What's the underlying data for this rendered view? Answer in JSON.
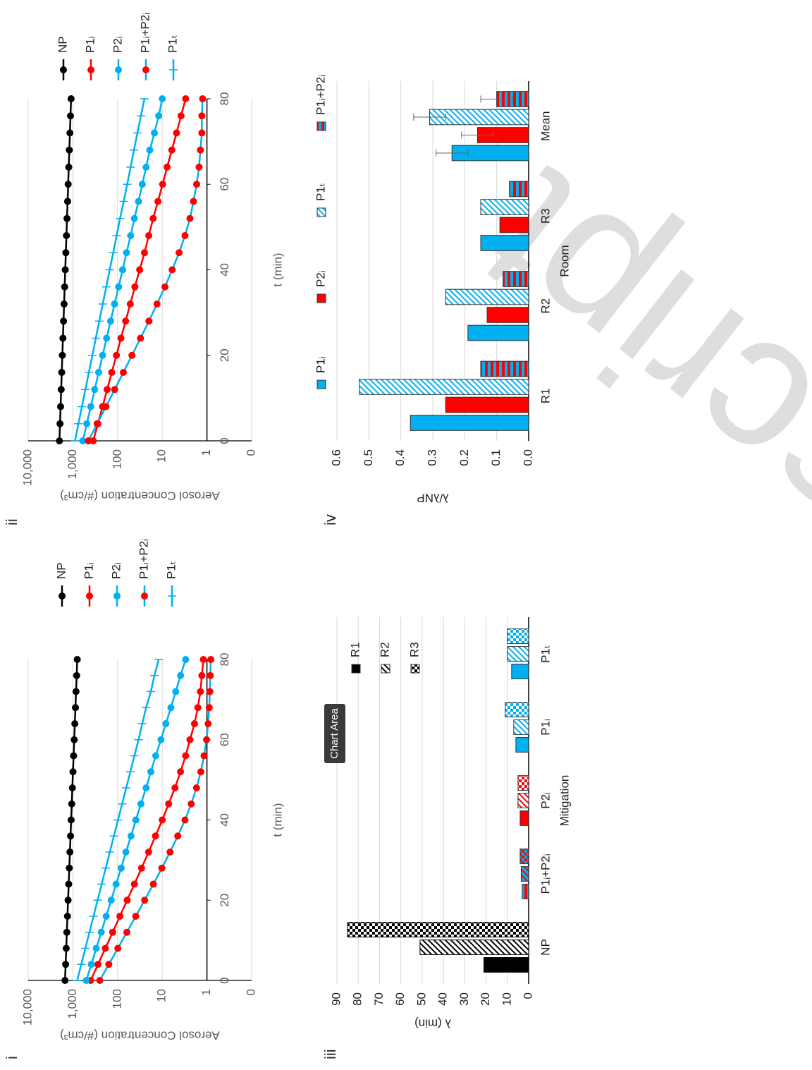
{
  "watermark": "script",
  "chart_data": [
    {
      "type": "line",
      "panel": "i",
      "xlabel": "t (min)",
      "ylabel": "Aerosol Concentration (#/cm³)",
      "yscale": "log",
      "xaxis_at": 1,
      "xlim": [
        0,
        80
      ],
      "xticks": [
        0,
        20,
        40,
        60,
        80
      ],
      "ylim": [
        0.1,
        10000
      ],
      "yticks": [
        {
          "value": 10000,
          "label": "10,000"
        },
        {
          "value": 1000,
          "label": "1,000"
        },
        100,
        10,
        1,
        {
          "value": 0.1,
          "label": "0"
        }
      ],
      "x": [
        0,
        4,
        8,
        12,
        16,
        20,
        24,
        28,
        32,
        36,
        40,
        44,
        48,
        52,
        56,
        60,
        64,
        68,
        72,
        76,
        80
      ],
      "series": [
        {
          "name": "NP",
          "color": "#000000",
          "marker": "circle",
          "values": [
            1500,
            1453,
            1408,
            1365,
            1322,
            1281,
            1241,
            1203,
            1165,
            1129,
            1094,
            1060,
            1027,
            995,
            964,
            934,
            905,
            877,
            850,
            823,
            798
          ]
        },
        {
          "name": "P1ᵢ",
          "color": "#ff0000",
          "marker": "circle",
          "values": [
            400,
            274,
            188,
            129,
            88.6,
            61,
            42,
            29.1,
            20.2,
            14.2,
            10,
            7.2,
            5.2,
            3.9,
            3,
            2.4,
            1.9,
            1.6,
            1.4,
            1.3,
            1.2
          ]
        },
        {
          "name": "P2ᵢ",
          "color": "#00b0f0",
          "marker": "circle",
          "values": [
            500,
            387,
            300,
            232,
            180,
            139,
            108,
            83,
            65,
            50,
            39,
            30,
            23,
            18,
            14,
            10.7,
            8.3,
            6.4,
            5,
            3.9,
            3
          ]
        },
        {
          "name": "P1ᵢ+P2ᵢ",
          "color": "#00b0f0",
          "marker_color": "#ff0000",
          "marker": "circle",
          "values": [
            250,
            157,
            98.6,
            62,
            39.1,
            24.8,
            15.8,
            10.2,
            6.7,
            4.5,
            3.1,
            2.25,
            1.71,
            1.37,
            1.16,
            1.02,
            0.94,
            0.89,
            0.86,
            0.84,
            0.82
          ]
        },
        {
          "name": "P1ₜ",
          "color": "#00b0f0",
          "marker": "plus",
          "values": [
            800,
            649,
            526,
            426,
            345,
            280,
            227,
            184,
            149,
            121,
            98,
            79,
            64,
            52,
            42,
            34,
            28,
            23,
            18,
            15,
            12
          ]
        }
      ]
    },
    {
      "type": "line",
      "panel": "ii",
      "xlabel": "t (min)",
      "ylabel": "Aerosol Concentration (#/cm³)",
      "yscale": "log",
      "xaxis_at": 1,
      "xlim": [
        0,
        80
      ],
      "xticks": [
        0,
        20,
        40,
        60,
        80
      ],
      "ylim": [
        0.1,
        10000
      ],
      "yticks": [
        {
          "value": 10000,
          "label": "10,000"
        },
        {
          "value": 1000,
          "label": "1,000"
        },
        100,
        10,
        1,
        {
          "value": 0.1,
          "label": "0"
        }
      ],
      "x": [
        0,
        4,
        8,
        12,
        16,
        20,
        24,
        28,
        32,
        36,
        40,
        44,
        48,
        52,
        56,
        60,
        64,
        68,
        72,
        76,
        80
      ],
      "series": [
        {
          "name": "NP",
          "color": "#000000",
          "marker": "circle",
          "values": [
            2000,
            1941,
            1884,
            1828,
            1774,
            1721,
            1671,
            1621,
            1573,
            1527,
            1482,
            1438,
            1395,
            1354,
            1314,
            1275,
            1237,
            1201,
            1165,
            1131,
            1097
          ]
        },
        {
          "name": "P1ᵢ",
          "color": "#ff0000",
          "marker": "circle",
          "values": [
            350,
            276,
            217,
            171,
            135,
            106,
            84,
            66,
            52,
            41,
            32,
            25,
            20,
            16,
            12.5,
            9.8,
            7.8,
            6.1,
            4.8,
            3.8,
            3
          ]
        },
        {
          "name": "P2ᵢ",
          "color": "#00b0f0",
          "marker": "circle",
          "values": [
            600,
            489,
            398,
            325,
            265,
            216,
            176,
            143,
            117,
            95,
            77,
            63,
            51,
            42,
            34,
            28,
            23,
            19,
            15,
            12,
            10
          ]
        },
        {
          "name": "P1ᵢ+P2ᵢ",
          "color": "#00b0f0",
          "marker_color": "#ff0000",
          "marker": "circle",
          "values": [
            450,
            286,
            182,
            116,
            74.2,
            47.6,
            30.7,
            19.9,
            13.1,
            8.7,
            6,
            4.2,
            3.1,
            2.4,
            2,
            1.7,
            1.5,
            1.4,
            1.3,
            1.3,
            1.25
          ]
        },
        {
          "name": "P1ₜ",
          "color": "#00b0f0",
          "marker": "plus",
          "values": [
            900,
            752,
            629,
            526,
            439,
            367,
            307,
            257,
            215,
            179,
            150,
            125,
            105,
            88,
            73,
            61,
            51,
            43,
            36,
            30,
            25
          ]
        }
      ]
    },
    {
      "type": "bar",
      "panel": "iii",
      "xlabel": "Mitigation",
      "ylabel": "λ (min)",
      "tooltip": "Chart Area",
      "ylim": [
        0,
        90
      ],
      "yticks": [
        0,
        10,
        20,
        30,
        40,
        50,
        60,
        70,
        80,
        90
      ],
      "categories": [
        "NP",
        "P1ᵢ+P2ᵢ",
        "P2ᵢ",
        "P1ᵢ",
        "P1ₜ"
      ],
      "category_styles": [
        {
          "color": "#000000"
        },
        {
          "color": "#00b0f0",
          "stripe_color": "#ff0000"
        },
        {
          "color": "#ff0000"
        },
        {
          "color": "#00b0f0"
        },
        {
          "color": "#00b0f0"
        }
      ],
      "series": [
        {
          "name": "R1",
          "color": "#000000",
          "pattern": "solid",
          "values": [
            21,
            3,
            4,
            6,
            8
          ]
        },
        {
          "name": "R2",
          "color": "#000000",
          "pattern": "diagonal",
          "values": [
            51,
            3.5,
            5,
            7,
            10
          ]
        },
        {
          "name": "R3",
          "color": "#000000",
          "pattern": "checker",
          "values": [
            85,
            4,
            5,
            11,
            10
          ]
        }
      ]
    },
    {
      "type": "bar",
      "panel": "iv",
      "xlabel": "Room",
      "ylabel": "λ/λNP",
      "ylim": [
        0,
        0.6
      ],
      "yticks": [
        {
          "value": 0,
          "label": "0.0"
        },
        0.1,
        0.2,
        0.3,
        0.4,
        0.5,
        0.6
      ],
      "categories": [
        "R1",
        "R2",
        "R3",
        "Mean"
      ],
      "series": [
        {
          "name": "P1ᵢ",
          "color": "#00b0f0",
          "pattern": "solid",
          "values": [
            0.37,
            0.19,
            0.15,
            0.24
          ],
          "errors": [
            null,
            null,
            null,
            0.05
          ]
        },
        {
          "name": "P2ᵢ",
          "color": "#ff0000",
          "pattern": "solid",
          "values": [
            0.26,
            0.13,
            0.09,
            0.16
          ],
          "errors": [
            null,
            null,
            null,
            0.05
          ]
        },
        {
          "name": "P1ₜ",
          "color": "#00b0f0",
          "pattern": "diagonal",
          "values": [
            0.53,
            0.26,
            0.15,
            0.31
          ],
          "errors": [
            null,
            null,
            null,
            0.05
          ]
        },
        {
          "name": "P1ᵢ+P2ᵢ",
          "color": "#00b0f0",
          "stripe_color": "#ff0000",
          "pattern": "stripes",
          "values": [
            0.15,
            0.08,
            0.06,
            0.1
          ],
          "errors": [
            null,
            null,
            null,
            0.05
          ]
        }
      ]
    }
  ]
}
